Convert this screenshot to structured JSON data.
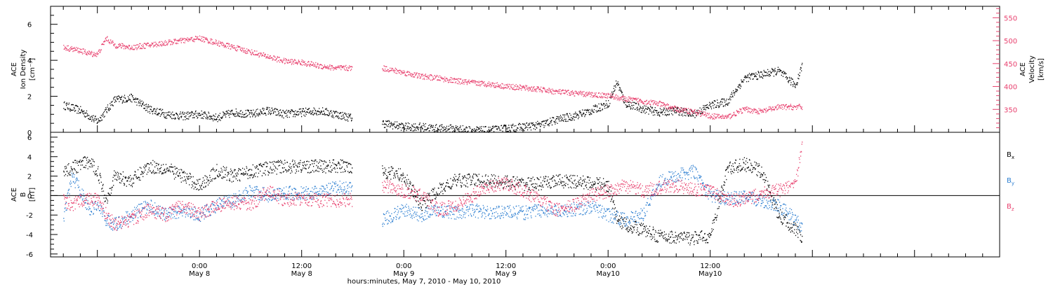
{
  "chart_data": [
    {
      "type": "scatter",
      "panel": "ion-density-velocity",
      "ylabel_left": [
        "ACE",
        "Ion Density",
        "[cm⁻³]"
      ],
      "ylabel_right": [
        "ACE",
        "Velocity",
        "[km/s]"
      ],
      "ylim_left": [
        0,
        7
      ],
      "yticks_left": [
        0,
        2,
        4,
        6
      ],
      "ylim_right": [
        300,
        575
      ],
      "yticks_right": [
        350,
        400,
        450,
        500,
        550
      ],
      "right_axis_color": "#e8406e",
      "series": [
        {
          "key": "density",
          "color": "#000000",
          "axis": "left",
          "x_hours": [
            -16,
            -14,
            -12,
            -10,
            -8,
            -6,
            -4,
            -2,
            0,
            2,
            4,
            6,
            8,
            10,
            12,
            14,
            16,
            17.8,
            21.5,
            24,
            26,
            28,
            30,
            32,
            34,
            36,
            38,
            40,
            42,
            44,
            46,
            48,
            49,
            50,
            52,
            54,
            56,
            58,
            60,
            62,
            64,
            66,
            68,
            70,
            70.8
          ],
          "values": [
            1.5,
            1.2,
            0.6,
            1.8,
            1.9,
            1.3,
            1.0,
            0.9,
            1.0,
            0.8,
            1.1,
            1.0,
            1.2,
            1.0,
            1.1,
            1.2,
            1.0,
            0.8,
            0.5,
            0.3,
            0.3,
            0.2,
            0.2,
            0.1,
            0.1,
            0.2,
            0.3,
            0.4,
            0.7,
            0.9,
            1.2,
            1.6,
            2.8,
            1.6,
            1.3,
            1.1,
            1.2,
            1.0,
            1.5,
            1.7,
            3.0,
            3.2,
            3.4,
            2.6,
            3.8
          ]
        },
        {
          "key": "velocity",
          "color": "#e8406e",
          "axis": "right",
          "x_hours": [
            -16,
            -14,
            -13,
            -12,
            -11,
            -10,
            -8,
            -6,
            -4,
            -2,
            0,
            2,
            4,
            6,
            8,
            10,
            12,
            14,
            16,
            17.8,
            21.5,
            24,
            26,
            28,
            30,
            32,
            34,
            36,
            38,
            40,
            42,
            44,
            46,
            48,
            50,
            52,
            54,
            56,
            58,
            60,
            62,
            64,
            66,
            68,
            70,
            70.8
          ],
          "values": [
            485,
            478,
            472,
            470,
            505,
            490,
            485,
            490,
            495,
            500,
            505,
            495,
            485,
            475,
            465,
            455,
            452,
            445,
            440,
            440,
            440,
            430,
            422,
            418,
            412,
            408,
            405,
            400,
            397,
            393,
            388,
            385,
            382,
            380,
            372,
            368,
            362,
            350,
            345,
            335,
            333,
            350,
            345,
            355,
            355,
            355
          ]
        }
      ]
    },
    {
      "type": "scatter",
      "panel": "magnetic-field",
      "ylabel_left": [
        "ACE",
        "B",
        "[nT]"
      ],
      "ylim": [
        -6.3,
        6.5
      ],
      "yticks": [
        -6,
        -4,
        -2,
        0,
        2,
        4,
        6
      ],
      "zero_line": true,
      "series": [
        {
          "key": "bx",
          "legend": [
            "B",
            "x"
          ],
          "color": "#000000",
          "x_hours": [
            -16,
            -15,
            -14,
            -13,
            -12,
            -11,
            -10,
            -8,
            -6,
            -4,
            -2,
            0,
            2,
            4,
            6,
            8,
            10,
            12,
            14,
            16,
            17.8,
            21.5,
            24,
            26,
            28,
            30,
            32,
            34,
            36,
            38,
            40,
            42,
            44,
            46,
            48,
            49,
            50,
            52,
            54,
            56,
            58,
            60,
            62,
            64,
            66,
            68,
            70,
            70.8
          ],
          "values": [
            2.5,
            2.8,
            3.2,
            3.4,
            2.5,
            -0.5,
            2.0,
            1.5,
            3.0,
            2.8,
            2.0,
            1.0,
            2.5,
            2.0,
            2.5,
            2.8,
            3.0,
            3.0,
            3.0,
            3.0,
            3.0,
            2.5,
            2.0,
            -1.0,
            0.5,
            1.5,
            1.6,
            1.5,
            1.4,
            1.2,
            1.2,
            1.5,
            1.4,
            1.3,
            1.0,
            -2.5,
            -3.0,
            -3.5,
            -4.2,
            -4.3,
            -4.4,
            -4.2,
            2.8,
            3.2,
            2.5,
            -2.0,
            -3.5,
            -4.5
          ]
        },
        {
          "key": "by",
          "legend": [
            "B",
            "y"
          ],
          "color": "#2d7fd1",
          "x_hours": [
            -16,
            -15,
            -14,
            -13,
            -12,
            -11,
            -10,
            -8,
            -6,
            -4,
            -2,
            0,
            2,
            4,
            6,
            8,
            10,
            12,
            14,
            16,
            17.8,
            21.5,
            24,
            26,
            28,
            30,
            32,
            34,
            36,
            38,
            40,
            42,
            44,
            46,
            48,
            50,
            52,
            54,
            56,
            58,
            60,
            62,
            64,
            66,
            68,
            70,
            70.8
          ],
          "values": [
            -2.5,
            2.0,
            0.5,
            -1.5,
            -1.0,
            -2.5,
            -3.0,
            -2.0,
            -1.0,
            -2.0,
            -1.5,
            -2.0,
            -1.0,
            -0.5,
            0.5,
            0.0,
            0.3,
            0.2,
            0.3,
            0.8,
            0.8,
            -2.5,
            -1.5,
            -2.0,
            -1.5,
            -1.8,
            -1.5,
            -1.8,
            -1.6,
            -1.8,
            -1.5,
            -1.6,
            -1.4,
            -1.2,
            -2.0,
            -2.5,
            -2.0,
            1.5,
            2.0,
            2.5,
            0.0,
            -0.3,
            -0.2,
            -0.5,
            -1.0,
            -2.5,
            -3.5
          ]
        },
        {
          "key": "bz",
          "legend": [
            "B",
            "z"
          ],
          "color": "#e8406e",
          "x_hours": [
            -16,
            -15,
            -14,
            -13,
            -12,
            -11,
            -10,
            -8,
            -6,
            -4,
            -2,
            0,
            2,
            4,
            6,
            8,
            10,
            12,
            14,
            16,
            17.8,
            21.5,
            24,
            26,
            28,
            30,
            32,
            34,
            36,
            38,
            40,
            42,
            44,
            46,
            48,
            50,
            52,
            54,
            56,
            58,
            60,
            62,
            64,
            66,
            68,
            70,
            70.8
          ],
          "values": [
            -0.5,
            -1.0,
            -0.5,
            -0.3,
            -0.5,
            -2.0,
            -3.0,
            -2.5,
            -1.5,
            -2.0,
            -1.0,
            -2.0,
            -1.0,
            -0.8,
            -1.0,
            0.5,
            -0.5,
            -0.3,
            -0.5,
            -0.5,
            -0.5,
            1.0,
            0.5,
            0.0,
            -1.5,
            -1.0,
            0.0,
            1.0,
            1.2,
            0.5,
            -0.5,
            -1.5,
            -1.0,
            0.0,
            0.5,
            1.0,
            0.5,
            0.8,
            1.0,
            0.6,
            0.5,
            -0.5,
            -0.5,
            0.3,
            0.5,
            1.0,
            6.0
          ]
        }
      ]
    }
  ],
  "x_axis": {
    "xlim_hours": [
      -17.5,
      94
    ],
    "ticks": [
      {
        "hour": 0,
        "time": "0:00",
        "date": "May 8"
      },
      {
        "hour": 12,
        "time": "12:00",
        "date": "May 8"
      },
      {
        "hour": 24,
        "time": "0:00",
        "date": "May 9"
      },
      {
        "hour": 36,
        "time": "12:00",
        "date": "May 9"
      },
      {
        "hour": 48,
        "time": "0:00",
        "date": "May10"
      },
      {
        "hour": 60,
        "time": "12:00",
        "date": "May10"
      }
    ],
    "xlabel": "hours:minutes, May  7, 2010 - May 10, 2010"
  }
}
